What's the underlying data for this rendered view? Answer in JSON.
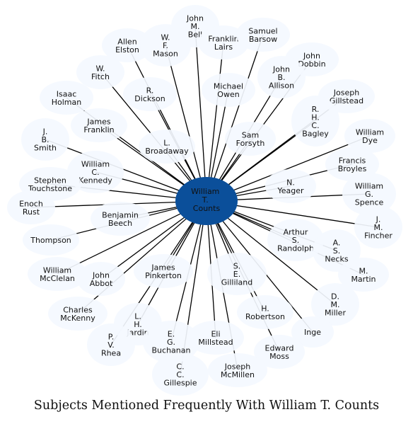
{
  "caption": "Subjects Mentioned Frequently With William T. Counts",
  "colors": {
    "center_fill": "#0b4f9a",
    "node_fill": "#f4f8ff",
    "edge": "#000000"
  },
  "center": {
    "lines": [
      "William",
      "T.",
      "Counts"
    ]
  },
  "nodes": [
    {
      "id": "john-m-bell",
      "lines": [
        "John",
        "M.",
        "Bell"
      ]
    },
    {
      "id": "allen-elston",
      "lines": [
        "Allen",
        "Elston"
      ]
    },
    {
      "id": "w-f-mason",
      "lines": [
        "W.",
        "F.",
        "Mason"
      ]
    },
    {
      "id": "franklin-lairs",
      "lines": [
        "Franklin",
        "Lairs"
      ]
    },
    {
      "id": "samuel-barsow",
      "lines": [
        "Samuel",
        "Barsow"
      ]
    },
    {
      "id": "john-dobbin",
      "lines": [
        "John",
        "Dobbin"
      ]
    },
    {
      "id": "w-fitch",
      "lines": [
        "W.",
        "Fitch"
      ]
    },
    {
      "id": "john-b-allison",
      "lines": [
        "John",
        "B.",
        "Allison"
      ]
    },
    {
      "id": "r-dickson",
      "lines": [
        "R.",
        "Dickson"
      ]
    },
    {
      "id": "michael-owen",
      "lines": [
        "Michael",
        "Owen"
      ]
    },
    {
      "id": "isaac-holman",
      "lines": [
        "Isaac",
        "Holman"
      ]
    },
    {
      "id": "joseph-gillstead",
      "lines": [
        "Joseph",
        "Gillstead"
      ]
    },
    {
      "id": "james-franklin",
      "lines": [
        "James",
        "Franklin"
      ]
    },
    {
      "id": "r-h-c-bagley",
      "lines": [
        "R.",
        "H.",
        "C.",
        "Bagley"
      ]
    },
    {
      "id": "j-b-smith",
      "lines": [
        "J.",
        "B.",
        "Smith"
      ]
    },
    {
      "id": "sam-forsyth",
      "lines": [
        "Sam",
        "Forsyth"
      ]
    },
    {
      "id": "william-dye",
      "lines": [
        "William",
        "Dye"
      ]
    },
    {
      "id": "l-broadaway",
      "lines": [
        "L.",
        "Broadaway"
      ]
    },
    {
      "id": "william-c-kennedy",
      "lines": [
        "William",
        "C.",
        "Kennedy"
      ]
    },
    {
      "id": "francis-broyles",
      "lines": [
        "Francis",
        "Broyles"
      ]
    },
    {
      "id": "stephen-touchstone",
      "lines": [
        "Stephen",
        "Touchstone"
      ]
    },
    {
      "id": "n-yeager",
      "lines": [
        "N.",
        "Yeager"
      ]
    },
    {
      "id": "william-g-spence",
      "lines": [
        "William",
        "G.",
        "Spence"
      ]
    },
    {
      "id": "enoch-rust",
      "lines": [
        "Enoch",
        "Rust"
      ]
    },
    {
      "id": "benjamin-beech",
      "lines": [
        "Benjamin",
        "Beech"
      ]
    },
    {
      "id": "j-m-fincher",
      "lines": [
        "J.",
        "M.",
        "Fincher"
      ]
    },
    {
      "id": "thompson",
      "lines": [
        "Thompson"
      ]
    },
    {
      "id": "arthur-s-randolph",
      "lines": [
        "Arthur",
        "S.",
        "Randolph"
      ]
    },
    {
      "id": "a-s-necks",
      "lines": [
        "A.",
        "S.",
        "Necks"
      ]
    },
    {
      "id": "james-pinkerton",
      "lines": [
        "James",
        "Pinkerton"
      ]
    },
    {
      "id": "william-mcclelan",
      "lines": [
        "William",
        "McClelan"
      ]
    },
    {
      "id": "john-abbot",
      "lines": [
        "John",
        "Abbot"
      ]
    },
    {
      "id": "s-e-gilliland",
      "lines": [
        "S.",
        "E.",
        "Gilliland"
      ]
    },
    {
      "id": "m-martin",
      "lines": [
        "M.",
        "Martin"
      ]
    },
    {
      "id": "charles-mckenny",
      "lines": [
        "Charles",
        "McKenny"
      ]
    },
    {
      "id": "h-robertson",
      "lines": [
        "H.",
        "Robertson"
      ]
    },
    {
      "id": "d-m-miller",
      "lines": [
        "D.",
        "M.",
        "Miller"
      ]
    },
    {
      "id": "l-h-jardin",
      "lines": [
        "L.",
        "H.",
        "Jardin"
      ]
    },
    {
      "id": "inge",
      "lines": [
        "Inge"
      ]
    },
    {
      "id": "p-v-rhea",
      "lines": [
        "P.",
        "V.",
        "Rhea"
      ]
    },
    {
      "id": "e-g-buchanan",
      "lines": [
        "E.",
        "G.",
        "Buchanan"
      ]
    },
    {
      "id": "eli-millstead",
      "lines": [
        "Eli",
        "Millstead"
      ]
    },
    {
      "id": "edward-moss",
      "lines": [
        "Edward",
        "Moss"
      ]
    },
    {
      "id": "joseph-mcmillen",
      "lines": [
        "Joseph",
        "McMillen"
      ]
    },
    {
      "id": "c-gillespie",
      "lines": [
        "C.",
        "C.",
        "Gillespie"
      ]
    }
  ]
}
